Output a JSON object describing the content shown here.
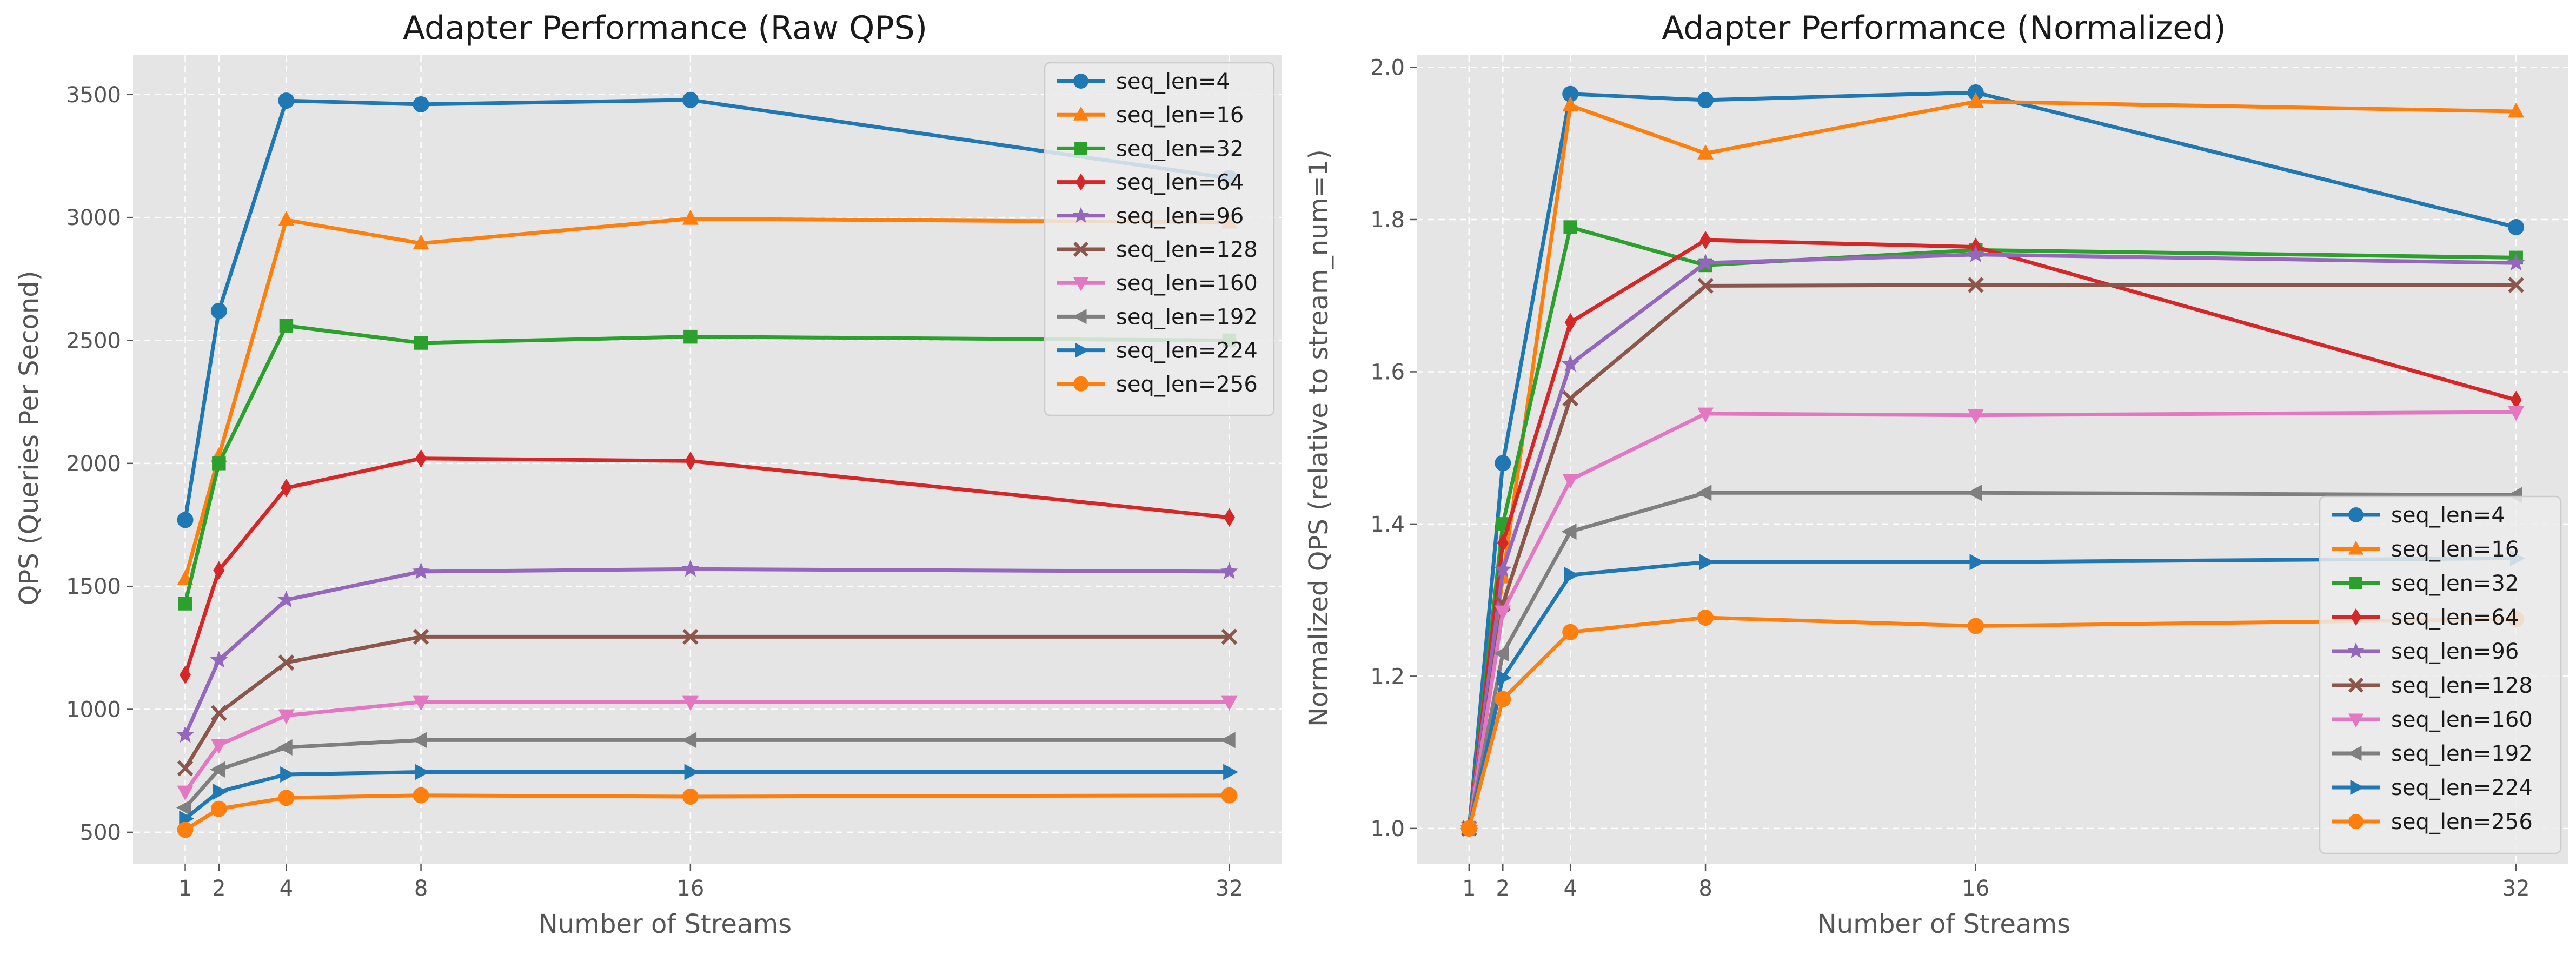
{
  "chart_data": [
    {
      "type": "line",
      "title": "Adapter Performance (Raw QPS)",
      "xlabel": "Number of Streams",
      "ylabel": "QPS (Queries Per Second)",
      "xlim": [
        -0.55,
        33.55
      ],
      "ylim": [
        370,
        3660
      ],
      "x_ticks": [
        1,
        2,
        4,
        8,
        16,
        32
      ],
      "y_ticks": [
        500,
        1000,
        1500,
        2000,
        2500,
        3000,
        3500
      ],
      "grid": true,
      "legend": "top-right",
      "x": [
        1,
        2,
        4,
        8,
        16,
        32
      ],
      "series": [
        {
          "name": "seq_len=4",
          "color": "#1f77b4",
          "marker": "circle",
          "values": [
            1770,
            2620,
            3475,
            3460,
            3478,
            3160
          ]
        },
        {
          "name": "seq_len=16",
          "color": "#ff7f0e",
          "marker": "triangle-up",
          "values": [
            1530,
            2030,
            2990,
            2895,
            2995,
            2980
          ]
        },
        {
          "name": "seq_len=32",
          "color": "#2ca02c",
          "marker": "square",
          "values": [
            1430,
            2000,
            2560,
            2490,
            2515,
            2500
          ]
        },
        {
          "name": "seq_len=64",
          "color": "#d62728",
          "marker": "diamond",
          "values": [
            1140,
            1565,
            1900,
            2020,
            2010,
            1780
          ]
        },
        {
          "name": "seq_len=96",
          "color": "#9467bd",
          "marker": "star",
          "values": [
            895,
            1200,
            1445,
            1560,
            1570,
            1560
          ]
        },
        {
          "name": "seq_len=128",
          "color": "#8c564b",
          "marker": "x",
          "values": [
            760,
            985,
            1190,
            1295,
            1295,
            1295
          ]
        },
        {
          "name": "seq_len=160",
          "color": "#e377c2",
          "marker": "triangle-down",
          "values": [
            665,
            855,
            975,
            1030,
            1030,
            1030
          ]
        },
        {
          "name": "seq_len=192",
          "color": "#7f7f7f",
          "marker": "triangle-left",
          "values": [
            600,
            755,
            845,
            875,
            875,
            875
          ]
        },
        {
          "name": "seq_len=224",
          "color": "#1f77b4",
          "marker": "triangle-right",
          "values": [
            555,
            665,
            735,
            745,
            745,
            745
          ]
        },
        {
          "name": "seq_len=256",
          "color": "#ff7f0e",
          "marker": "circle",
          "values": [
            510,
            595,
            640,
            650,
            645,
            650
          ]
        }
      ]
    },
    {
      "type": "line",
      "title": "Adapter Performance (Normalized)",
      "xlabel": "Number of Streams",
      "ylabel": "Normalized QPS (relative to stream_num=1)",
      "xlim": [
        -0.55,
        33.55
      ],
      "ylim": [
        0.953,
        2.016
      ],
      "x_ticks": [
        1,
        2,
        4,
        8,
        16,
        32
      ],
      "y_ticks": [
        1.0,
        1.2,
        1.4,
        1.6,
        1.8,
        2.0
      ],
      "grid": true,
      "legend": "lower-right",
      "x": [
        1,
        2,
        4,
        8,
        16,
        32
      ],
      "series": [
        {
          "name": "seq_len=4",
          "color": "#1f77b4",
          "marker": "circle",
          "values": [
            1.0,
            1.48,
            1.965,
            1.957,
            1.967,
            1.79
          ]
        },
        {
          "name": "seq_len=16",
          "color": "#ff7f0e",
          "marker": "triangle-up",
          "values": [
            1.0,
            1.33,
            1.95,
            1.887,
            1.955,
            1.942
          ]
        },
        {
          "name": "seq_len=32",
          "color": "#2ca02c",
          "marker": "square",
          "values": [
            1.0,
            1.4,
            1.79,
            1.74,
            1.76,
            1.75
          ]
        },
        {
          "name": "seq_len=64",
          "color": "#d62728",
          "marker": "diamond",
          "values": [
            1.0,
            1.375,
            1.665,
            1.773,
            1.764,
            1.563
          ]
        },
        {
          "name": "seq_len=96",
          "color": "#9467bd",
          "marker": "star",
          "values": [
            1.0,
            1.34,
            1.61,
            1.743,
            1.754,
            1.743
          ]
        },
        {
          "name": "seq_len=128",
          "color": "#8c564b",
          "marker": "x",
          "values": [
            1.0,
            1.295,
            1.565,
            1.713,
            1.714,
            1.714
          ]
        },
        {
          "name": "seq_len=160",
          "color": "#e377c2",
          "marker": "triangle-down",
          "values": [
            1.0,
            1.285,
            1.458,
            1.545,
            1.543,
            1.547
          ]
        },
        {
          "name": "seq_len=192",
          "color": "#7f7f7f",
          "marker": "triangle-left",
          "values": [
            1.0,
            1.23,
            1.39,
            1.441,
            1.441,
            1.438
          ]
        },
        {
          "name": "seq_len=224",
          "color": "#1f77b4",
          "marker": "triangle-right",
          "values": [
            1.0,
            1.198,
            1.333,
            1.35,
            1.35,
            1.355
          ]
        },
        {
          "name": "seq_len=256",
          "color": "#ff7f0e",
          "marker": "circle",
          "values": [
            1.0,
            1.17,
            1.258,
            1.277,
            1.266,
            1.275
          ]
        }
      ]
    }
  ]
}
